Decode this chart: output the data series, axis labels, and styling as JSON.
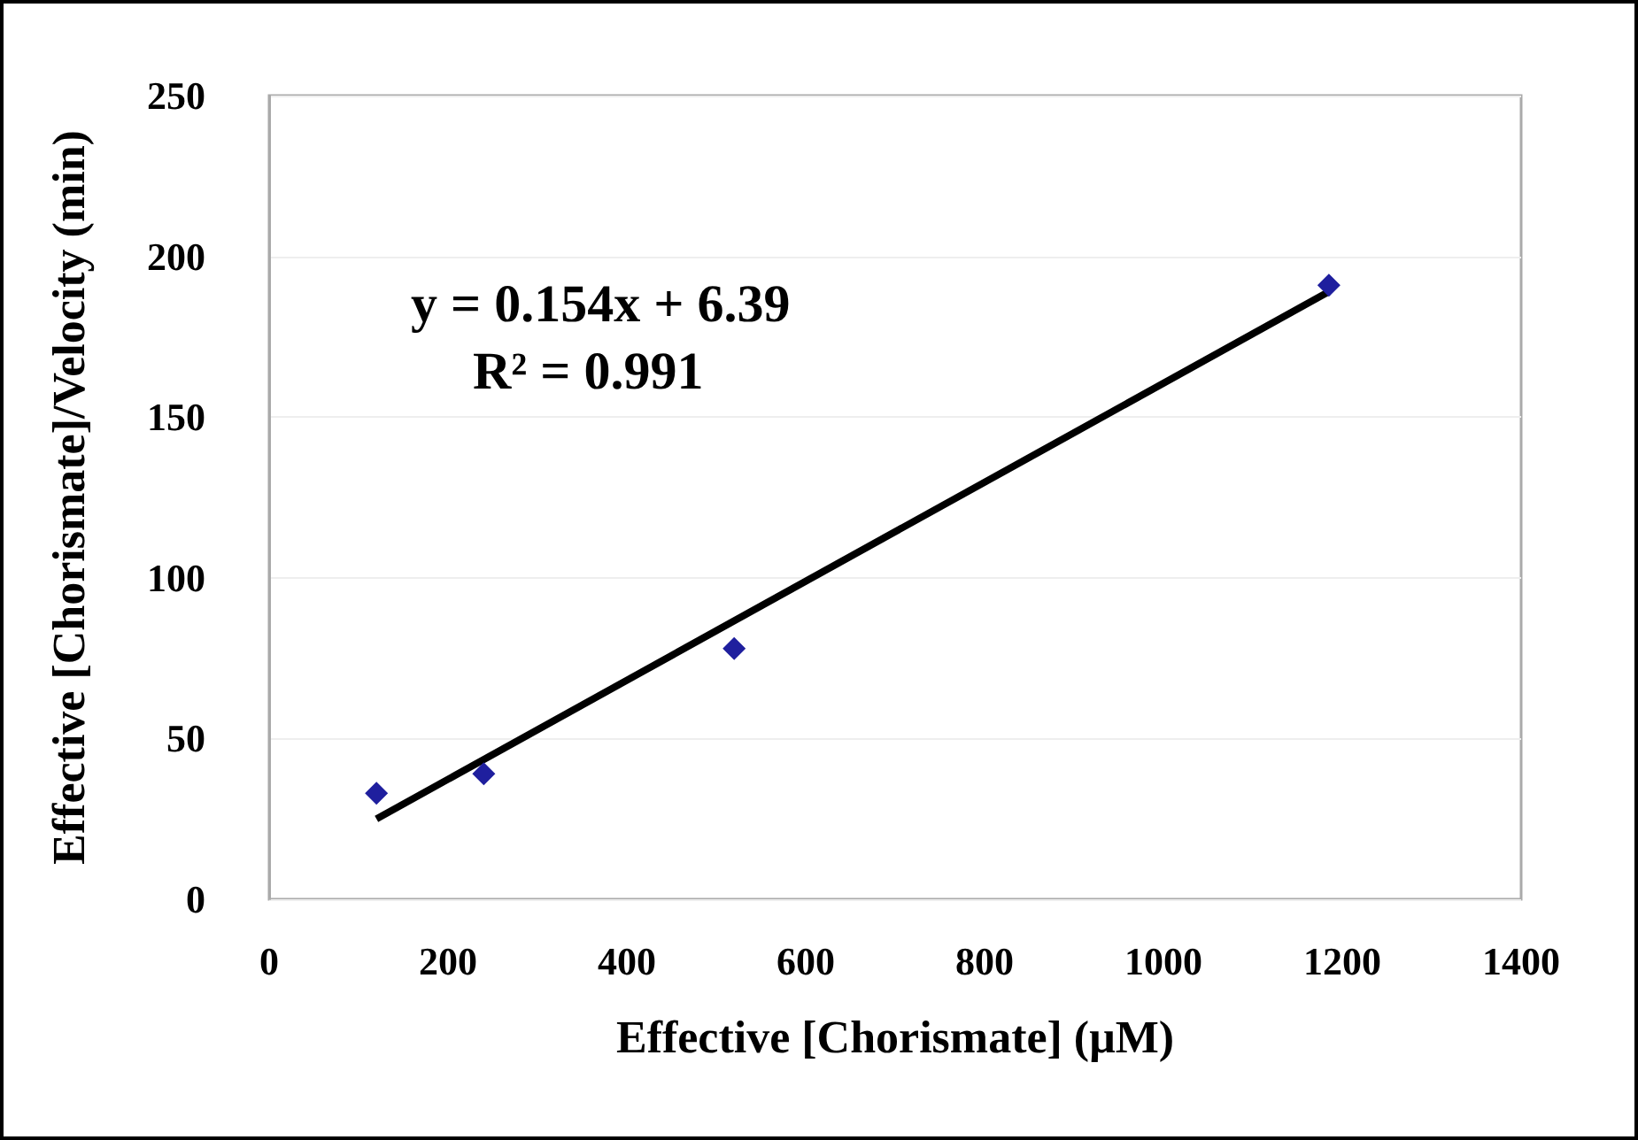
{
  "chart_data": {
    "type": "scatter",
    "xlabel": "Effective [Chorismate] (μM)",
    "ylabel": "Effective [Chorismate]/Velocity (min)",
    "series": [
      {
        "color": "#1f1f9e",
        "x": [
          120,
          240,
          520,
          1185
        ],
        "values": [
          33,
          39,
          78,
          191
        ],
        "marker": "diamond"
      },
      {
        "type": "line",
        "color": "#000000",
        "x": [
          120,
          1185
        ],
        "values": [
          25,
          189
        ],
        "marker": "none"
      }
    ],
    "annotations": [
      "y = 0.154x + 6.39",
      "R² = 0.991"
    ],
    "xlim": [
      0,
      1400
    ],
    "xticks": [
      0,
      200,
      400,
      600,
      800,
      1000,
      1200,
      1400
    ],
    "ylim": [
      0,
      250
    ],
    "yticks": [
      0,
      50,
      100,
      150,
      200,
      250
    ],
    "grid": "y"
  }
}
